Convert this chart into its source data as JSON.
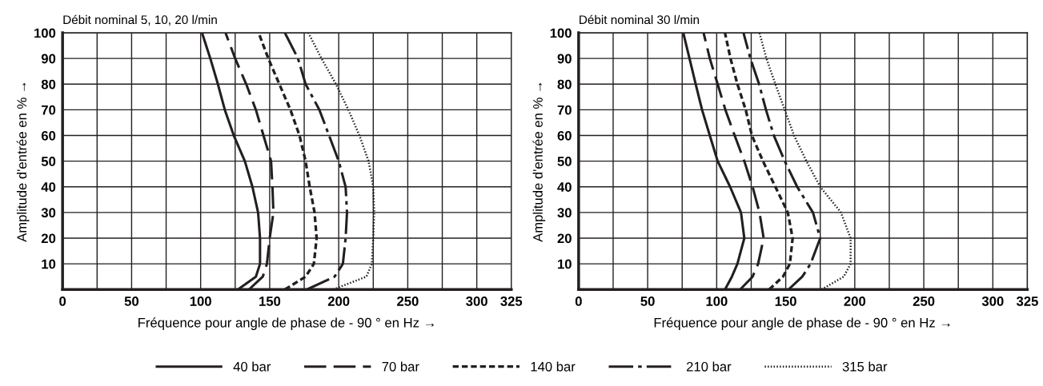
{
  "chart_data": [
    {
      "type": "line",
      "title": "Débit nominal 5, 10, 20 l/min",
      "xlabel": "Fréquence pour angle de phase de - 90 ° en Hz →",
      "ylabel": "Amplitude d'entrée en % →",
      "xlim": [
        0,
        325
      ],
      "ylim": [
        0,
        100
      ],
      "xticks": [
        0,
        {
          "value": 25,
          "label": null
        },
        50,
        {
          "value": 75,
          "label": null
        },
        100,
        {
          "value": 125,
          "label": null
        },
        150,
        {
          "value": 175,
          "label": null
        },
        200,
        {
          "value": 225,
          "label": null
        },
        250,
        {
          "value": 275,
          "label": null
        },
        300,
        325
      ],
      "yticks": [
        10,
        20,
        30,
        40,
        50,
        60,
        70,
        80,
        90,
        100
      ],
      "grid": true,
      "legend": "bottom",
      "series": [
        {
          "name": "40 bar",
          "color": "#231f20",
          "line_style": "solid",
          "x": [
            127,
            140,
            143,
            143,
            141.6,
            137.5,
            132,
            124,
            117.5,
            112.5,
            107,
            101
          ],
          "values": [
            0,
            5,
            10,
            20,
            30,
            40,
            50,
            60,
            70,
            80,
            90,
            100
          ]
        },
        {
          "name": "70 bar",
          "color": "#231f20",
          "line_style": "longdash",
          "x": [
            135,
            145,
            148,
            150,
            152.7,
            152,
            151,
            145.5,
            140,
            133,
            125,
            118
          ],
          "values": [
            0,
            5,
            10,
            20,
            30,
            40,
            50,
            60,
            70,
            80,
            90,
            100
          ]
        },
        {
          "name": "140 bar",
          "color": "#231f20",
          "line_style": "dashed",
          "x": [
            161,
            176,
            182,
            184,
            182.5,
            179,
            176,
            171.6,
            165,
            157,
            149,
            142
          ],
          "values": [
            0,
            5,
            10,
            20,
            30,
            40,
            50,
            60,
            70,
            80,
            90,
            100
          ]
        },
        {
          "name": "210 bar",
          "color": "#231f20",
          "line_style": "dashdot",
          "x": [
            177,
            197,
            203,
            205,
            206,
            205,
            200,
            193,
            186,
            176,
            170.5,
            161
          ],
          "values": [
            0,
            5,
            10,
            20,
            30,
            40,
            50,
            60,
            70,
            80,
            90,
            100
          ]
        },
        {
          "name": "315 bar",
          "color": "#231f20",
          "line_style": "dotted",
          "x": [
            196,
            220,
            224,
            225,
            225.7,
            225,
            221.6,
            215,
            207,
            198,
            187.5,
            178
          ],
          "values": [
            0,
            5,
            10,
            20,
            30,
            40,
            50,
            60,
            70,
            80,
            90,
            100
          ]
        }
      ]
    },
    {
      "type": "line",
      "title": "Débit nominal 30 l/min",
      "xlabel": "Fréquence pour angle de phase de - 90 ° en Hz →",
      "ylabel": "Amplitude d'entrée en % →",
      "xlim": [
        0,
        325
      ],
      "ylim": [
        0,
        100
      ],
      "xticks": [
        0,
        {
          "value": 25,
          "label": null
        },
        50,
        {
          "value": 75,
          "label": null
        },
        100,
        {
          "value": 125,
          "label": null
        },
        150,
        {
          "value": 175,
          "label": null
        },
        200,
        {
          "value": 225,
          "label": null
        },
        250,
        {
          "value": 275,
          "label": null
        },
        300,
        325
      ],
      "yticks": [
        10,
        20,
        30,
        40,
        50,
        60,
        70,
        80,
        90,
        100
      ],
      "grid": true,
      "legend": "bottom",
      "series": [
        {
          "name": "40 bar",
          "color": "#231f20",
          "line_style": "solid",
          "x": [
            106,
            111,
            115,
            120,
            117.6,
            109.7,
            100.7,
            95,
            89.4,
            84.8,
            80.3,
            75.8
          ],
          "values": [
            0,
            5,
            10,
            20,
            30,
            40,
            50,
            60,
            70,
            80,
            90,
            100
          ]
        },
        {
          "name": "70 bar",
          "color": "#231f20",
          "line_style": "longdash",
          "x": [
            117,
            126,
            130,
            134,
            131,
            126,
            120,
            113,
            106.3,
            100.7,
            95,
            90.5
          ],
          "values": [
            0,
            5,
            10,
            20,
            30,
            40,
            50,
            60,
            70,
            80,
            90,
            100
          ]
        },
        {
          "name": "140 bar",
          "color": "#231f20",
          "line_style": "dashed",
          "x": [
            138,
            148,
            153,
            155,
            151.5,
            142.5,
            133.5,
            125.5,
            121,
            115,
            110,
            106
          ],
          "values": [
            0,
            5,
            10,
            20,
            30,
            40,
            50,
            60,
            70,
            80,
            90,
            100
          ]
        },
        {
          "name": "210 bar",
          "color": "#231f20",
          "line_style": "dashdot",
          "x": [
            152,
            162,
            168,
            175,
            169.7,
            158.3,
            149.3,
            141.4,
            135.7,
            130.7,
            124.4,
            119.4
          ],
          "values": [
            0,
            5,
            10,
            20,
            30,
            40,
            50,
            60,
            70,
            80,
            90,
            100
          ]
        },
        {
          "name": "315 bar",
          "color": "#231f20",
          "line_style": "dotted",
          "x": [
            176,
            192,
            197,
            197,
            190,
            175,
            165,
            156,
            149.3,
            142.5,
            136,
            131
          ],
          "values": [
            0,
            5,
            10,
            20,
            30,
            40,
            50,
            60,
            70,
            80,
            90,
            100
          ]
        }
      ]
    }
  ]
}
